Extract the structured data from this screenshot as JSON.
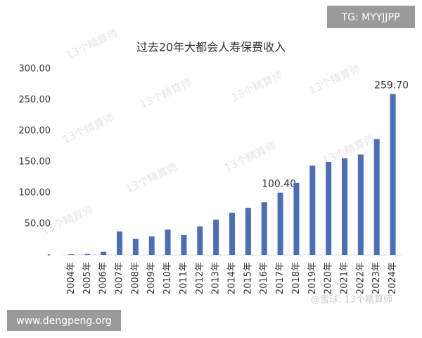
{
  "chart_data": {
    "type": "bar",
    "title": "过去20年大都会人寿保费收入",
    "categories": [
      "2004年",
      "2005年",
      "2006年",
      "2007年",
      "2008年",
      "2009年",
      "2010年",
      "2011年",
      "2012年",
      "2013年",
      "2014年",
      "2015年",
      "2016年",
      "2017年",
      "2018年",
      "2019年",
      "2020年",
      "2021年",
      "2022年",
      "2023年",
      "2024年"
    ],
    "values": [
      1,
      1.5,
      5,
      38,
      26,
      30,
      41,
      32,
      46,
      57,
      68,
      76,
      85,
      100.4,
      116,
      144,
      150,
      156,
      162,
      187,
      259.7
    ],
    "value_labels": [
      null,
      null,
      null,
      null,
      null,
      null,
      null,
      null,
      null,
      null,
      null,
      null,
      null,
      "100.40",
      null,
      null,
      null,
      null,
      null,
      null,
      "259.70"
    ],
    "color": "#4a6fb5",
    "ylim": [
      0,
      300
    ],
    "yticks": [
      {
        "value": 0,
        "label": "-"
      },
      {
        "value": 50,
        "label": "50.00"
      },
      {
        "value": 100,
        "label": "100.00"
      },
      {
        "value": 150,
        "label": "150.00"
      },
      {
        "value": 200,
        "label": "200.00"
      },
      {
        "value": 250,
        "label": "250.00"
      },
      {
        "value": 300,
        "label": "300.00"
      }
    ],
    "grid": false
  },
  "watermark": "13个精算师",
  "top_badge": "TG: MYYJJPP",
  "bottom_badge": "www.dengpeng.org",
  "source_watermark": "@雪球: 13个精算师"
}
